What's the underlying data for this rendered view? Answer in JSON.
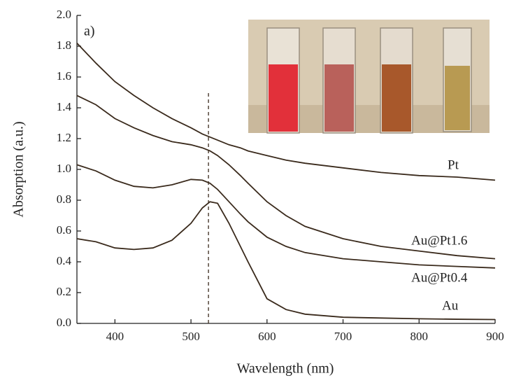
{
  "chart_data": {
    "type": "line",
    "annotation": "a)",
    "x_label": "Wavelength (nm)",
    "y_label": "Absorption (a.u.)",
    "x": [
      350,
      375,
      400,
      425,
      450,
      475,
      500,
      515,
      525,
      535,
      550,
      565,
      575,
      600,
      625,
      650,
      700,
      750,
      800,
      850,
      900
    ],
    "series": [
      {
        "name": "Pt",
        "color": "#3a2a1c",
        "values": [
          1.82,
          1.69,
          1.57,
          1.48,
          1.4,
          1.33,
          1.27,
          1.23,
          1.21,
          1.19,
          1.16,
          1.14,
          1.12,
          1.09,
          1.06,
          1.04,
          1.01,
          0.98,
          0.96,
          0.95,
          0.93
        ]
      },
      {
        "name": "Au@Pt1.6",
        "color": "#3a2a1c",
        "values": [
          1.48,
          1.42,
          1.33,
          1.27,
          1.22,
          1.18,
          1.16,
          1.14,
          1.12,
          1.09,
          1.03,
          0.96,
          0.91,
          0.79,
          0.7,
          0.63,
          0.55,
          0.5,
          0.47,
          0.44,
          0.42
        ]
      },
      {
        "name": "Au@Pt0.4",
        "color": "#3a2a1c",
        "values": [
          1.03,
          0.99,
          0.93,
          0.89,
          0.88,
          0.9,
          0.935,
          0.93,
          0.91,
          0.87,
          0.79,
          0.71,
          0.66,
          0.56,
          0.5,
          0.46,
          0.42,
          0.4,
          0.38,
          0.37,
          0.36
        ]
      },
      {
        "name": "Au",
        "color": "#3a2a1c",
        "values": [
          0.55,
          0.53,
          0.49,
          0.48,
          0.49,
          0.54,
          0.65,
          0.75,
          0.79,
          0.78,
          0.65,
          0.5,
          0.4,
          0.16,
          0.09,
          0.06,
          0.04,
          0.035,
          0.03,
          0.027,
          0.025
        ]
      }
    ],
    "reference_x": 523,
    "xlim": [
      350,
      900
    ],
    "xticks": [
      400,
      500,
      600,
      700,
      800,
      900
    ],
    "ylim": [
      0,
      2
    ],
    "yticks": [
      {
        "value": 0,
        "label": "0.0"
      },
      0.2,
      0.4,
      0.6,
      0.8,
      {
        "value": 1,
        "label": "1.0"
      },
      1.2,
      1.4,
      1.6,
      1.8,
      {
        "value": 2,
        "label": "2.0"
      }
    ]
  }
}
